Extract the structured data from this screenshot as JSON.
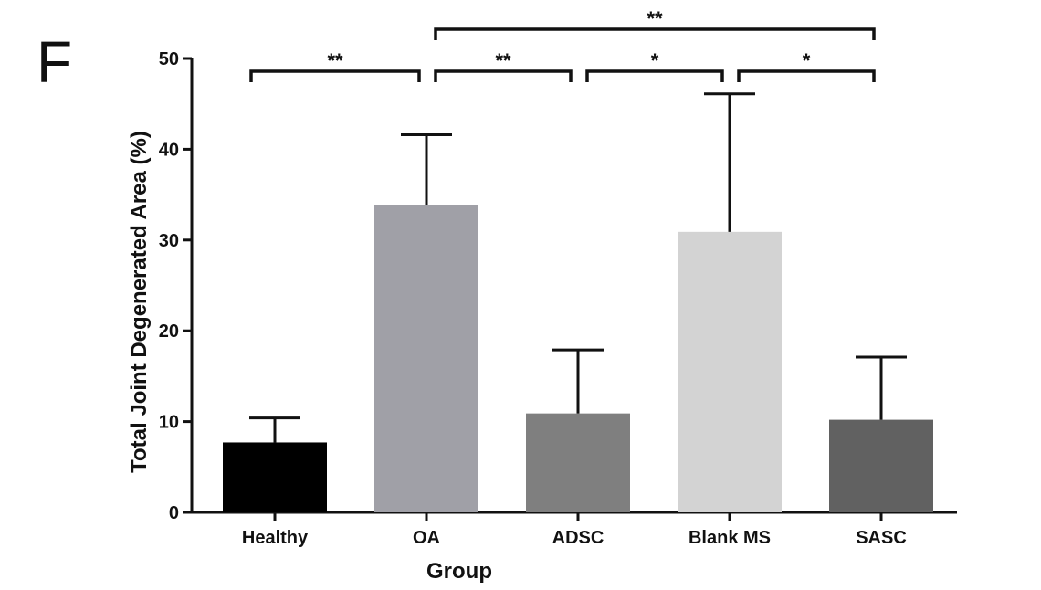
{
  "panel_label": "F",
  "colors": {
    "axis": "#111111",
    "bars": [
      "#000000",
      "#a0a0a7",
      "#7f7f7f",
      "#d3d3d3",
      "#616161"
    ]
  },
  "chart_data": {
    "type": "bar",
    "title": "",
    "xlabel": "Group",
    "ylabel": "Total Joint Degenerated Area (%)",
    "ylim": [
      0,
      50
    ],
    "yticks": [
      0,
      10,
      20,
      30,
      40,
      50
    ],
    "categories": [
      "Healthy",
      "OA",
      "ADSC",
      "Blank MS",
      "SASC"
    ],
    "values": [
      7.7,
      33.9,
      10.9,
      30.9,
      10.2
    ],
    "error_upper": [
      2.7,
      7.7,
      7.0,
      15.2,
      6.9
    ],
    "grid": false,
    "significance": [
      {
        "from": "Healthy",
        "to": "OA",
        "label": "**"
      },
      {
        "from": "OA",
        "to": "ADSC",
        "label": "**"
      },
      {
        "from": "ADSC",
        "to": "Blank MS",
        "label": "*"
      },
      {
        "from": "Blank MS",
        "to": "SASC",
        "label": "*"
      },
      {
        "from": "OA",
        "to": "SASC",
        "label": "**"
      }
    ]
  }
}
